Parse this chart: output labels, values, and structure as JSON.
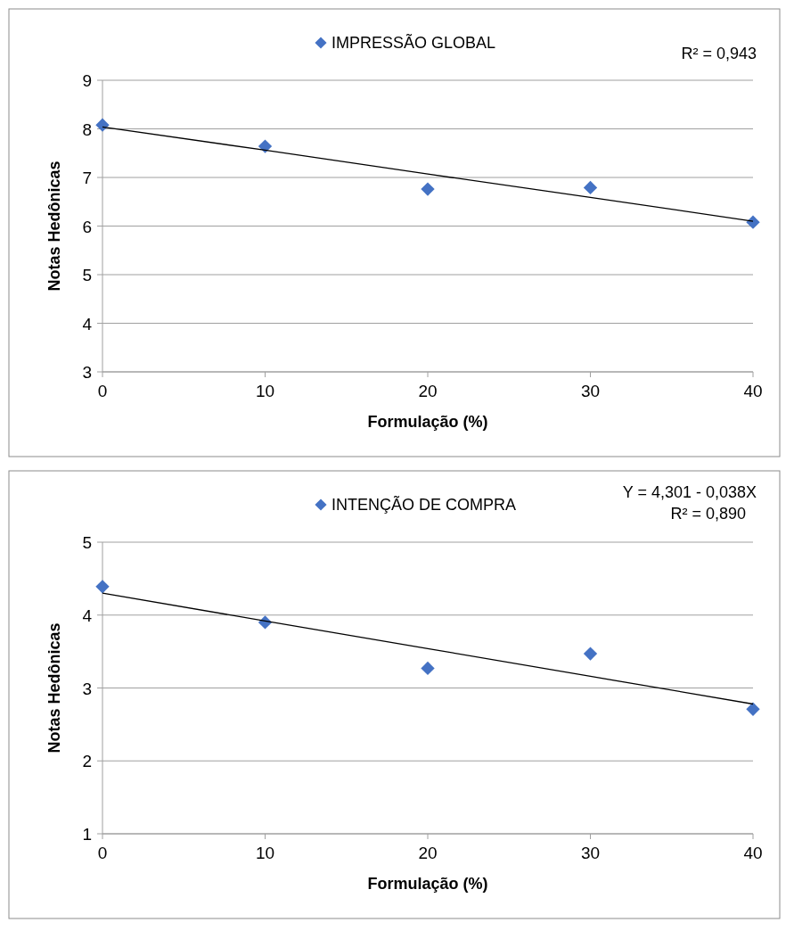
{
  "chart_data": [
    {
      "type": "scatter",
      "xlabel": "Formulação (%)",
      "ylabel": "Notas Hedônicas",
      "x": [
        0,
        10,
        20,
        30,
        40
      ],
      "xlim": [
        0,
        40
      ],
      "xticks": [
        0,
        10,
        20,
        30,
        40
      ],
      "ylim": [
        3,
        9
      ],
      "yticks": [
        3,
        4,
        5,
        6,
        7,
        8,
        9
      ],
      "grid": "y",
      "legend": "top",
      "marker": "diamond",
      "annotations": [
        "R² = 0,943"
      ],
      "series": [
        {
          "name": "IMPRESSÃO GLOBAL",
          "color": "#4472c4",
          "values": [
            8.08,
            7.64,
            6.76,
            6.79,
            6.08
          ]
        },
        {
          "type": "line",
          "color": "#000000",
          "values": [
            8.04,
            7.56,
            7.07,
            6.59,
            6.1
          ],
          "marker": "none"
        }
      ]
    },
    {
      "type": "scatter",
      "xlabel": "Formulação (%)",
      "ylabel": "Notas Hedônicas",
      "x": [
        0,
        10,
        20,
        30,
        40
      ],
      "xlim": [
        0,
        40
      ],
      "xticks": [
        0,
        10,
        20,
        30,
        40
      ],
      "ylim": [
        1,
        5
      ],
      "yticks": [
        1,
        2,
        3,
        4,
        5
      ],
      "grid": "y",
      "legend": "top",
      "marker": "diamond",
      "annotations": [
        "Y = 4,301 - 0,038X",
        "R² = 0,890"
      ],
      "series": [
        {
          "name": "INTENÇÃO DE COMPRA",
          "color": "#4472c4",
          "values": [
            4.39,
            3.9,
            3.27,
            3.47,
            2.71
          ]
        },
        {
          "type": "line",
          "color": "#000000",
          "values": [
            4.3,
            3.92,
            3.54,
            3.16,
            2.78
          ],
          "marker": "none"
        }
      ]
    }
  ]
}
